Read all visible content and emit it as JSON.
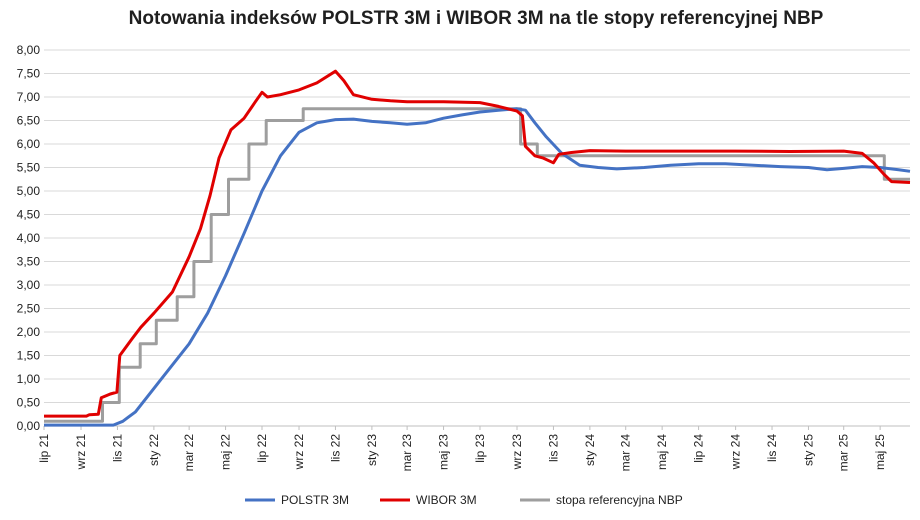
{
  "chart_data": {
    "type": "line",
    "title": "Notowania indeksów POLSTR 3M i WIBOR 3M na tle stopy referencyjnej NBP",
    "xlabel": "",
    "ylabel": "",
    "ylim": [
      0,
      8
    ],
    "y_ticks": [
      "0,00",
      "0,50",
      "1,00",
      "1,50",
      "2,00",
      "2,50",
      "3,00",
      "3,50",
      "4,00",
      "4,50",
      "5,00",
      "5,50",
      "6,00",
      "6,50",
      "7,00",
      "7,50",
      "8,00"
    ],
    "x_range": [
      "2021-07-01",
      "2025-06-20"
    ],
    "x_ticks": [
      {
        "label": "lip 21",
        "date": "2021-07-01"
      },
      {
        "label": "wrz 21",
        "date": "2021-09-01"
      },
      {
        "label": "lis 21",
        "date": "2021-11-01"
      },
      {
        "label": "sty 22",
        "date": "2022-01-01"
      },
      {
        "label": "mar 22",
        "date": "2022-03-01"
      },
      {
        "label": "maj 22",
        "date": "2022-05-01"
      },
      {
        "label": "lip 22",
        "date": "2022-07-01"
      },
      {
        "label": "wrz 22",
        "date": "2022-09-01"
      },
      {
        "label": "lis 22",
        "date": "2022-11-01"
      },
      {
        "label": "sty 23",
        "date": "2023-01-01"
      },
      {
        "label": "mar 23",
        "date": "2023-03-01"
      },
      {
        "label": "maj 23",
        "date": "2023-05-01"
      },
      {
        "label": "lip 23",
        "date": "2023-07-01"
      },
      {
        "label": "wrz 23",
        "date": "2023-09-01"
      },
      {
        "label": "lis 23",
        "date": "2023-11-01"
      },
      {
        "label": "sty 24",
        "date": "2024-01-01"
      },
      {
        "label": "mar 24",
        "date": "2024-03-01"
      },
      {
        "label": "maj 24",
        "date": "2024-05-01"
      },
      {
        "label": "lip 24",
        "date": "2024-07-01"
      },
      {
        "label": "wrz 24",
        "date": "2024-09-01"
      },
      {
        "label": "lis 24",
        "date": "2024-11-01"
      },
      {
        "label": "sty 25",
        "date": "2025-01-01"
      },
      {
        "label": "mar 25",
        "date": "2025-03-01"
      },
      {
        "label": "maj 25",
        "date": "2025-05-01"
      }
    ],
    "grid": true,
    "legend_placement": "bottom",
    "series": [
      {
        "name": "POLSTR 3M",
        "color": "#4472c4",
        "step": false,
        "points": [
          [
            "2021-07-01",
            0.02
          ],
          [
            "2021-10-25",
            0.02
          ],
          [
            "2021-11-10",
            0.1
          ],
          [
            "2021-12-01",
            0.3
          ],
          [
            "2022-01-01",
            0.8
          ],
          [
            "2022-02-01",
            1.3
          ],
          [
            "2022-03-01",
            1.75
          ],
          [
            "2022-04-01",
            2.4
          ],
          [
            "2022-05-01",
            3.2
          ],
          [
            "2022-06-01",
            4.1
          ],
          [
            "2022-07-01",
            5.0
          ],
          [
            "2022-08-01",
            5.75
          ],
          [
            "2022-09-01",
            6.25
          ],
          [
            "2022-10-01",
            6.45
          ],
          [
            "2022-11-01",
            6.52
          ],
          [
            "2022-12-01",
            6.53
          ],
          [
            "2023-01-01",
            6.48
          ],
          [
            "2023-02-01",
            6.45
          ],
          [
            "2023-03-01",
            6.42
          ],
          [
            "2023-04-01",
            6.45
          ],
          [
            "2023-05-01",
            6.55
          ],
          [
            "2023-06-01",
            6.62
          ],
          [
            "2023-07-01",
            6.68
          ],
          [
            "2023-08-01",
            6.72
          ],
          [
            "2023-09-01",
            6.75
          ],
          [
            "2023-09-15",
            6.72
          ],
          [
            "2023-10-01",
            6.45
          ],
          [
            "2023-10-20",
            6.15
          ],
          [
            "2023-11-15",
            5.8
          ],
          [
            "2023-12-15",
            5.55
          ],
          [
            "2024-01-15",
            5.5
          ],
          [
            "2024-02-15",
            5.47
          ],
          [
            "2024-04-01",
            5.5
          ],
          [
            "2024-05-15",
            5.55
          ],
          [
            "2024-07-01",
            5.58
          ],
          [
            "2024-08-15",
            5.58
          ],
          [
            "2024-10-01",
            5.55
          ],
          [
            "2024-11-15",
            5.52
          ],
          [
            "2025-01-01",
            5.5
          ],
          [
            "2025-02-01",
            5.45
          ],
          [
            "2025-03-01",
            5.48
          ],
          [
            "2025-04-01",
            5.52
          ],
          [
            "2025-05-01",
            5.5
          ],
          [
            "2025-06-01",
            5.45
          ],
          [
            "2025-06-20",
            5.42
          ]
        ]
      },
      {
        "name": "WIBOR 3M",
        "color": "#e00000",
        "step": false,
        "points": [
          [
            "2021-07-01",
            0.21
          ],
          [
            "2021-09-10",
            0.21
          ],
          [
            "2021-09-15",
            0.24
          ],
          [
            "2021-09-30",
            0.25
          ],
          [
            "2021-10-05",
            0.6
          ],
          [
            "2021-10-20",
            0.68
          ],
          [
            "2021-10-31",
            0.72
          ],
          [
            "2021-11-05",
            1.5
          ],
          [
            "2021-11-25",
            1.85
          ],
          [
            "2021-12-10",
            2.1
          ],
          [
            "2022-01-01",
            2.4
          ],
          [
            "2022-02-01",
            2.85
          ],
          [
            "2022-03-01",
            3.6
          ],
          [
            "2022-03-20",
            4.2
          ],
          [
            "2022-04-05",
            4.9
          ],
          [
            "2022-04-20",
            5.7
          ],
          [
            "2022-05-10",
            6.3
          ],
          [
            "2022-06-01",
            6.55
          ],
          [
            "2022-06-20",
            6.9
          ],
          [
            "2022-07-01",
            7.1
          ],
          [
            "2022-07-10",
            7.0
          ],
          [
            "2022-08-01",
            7.05
          ],
          [
            "2022-09-01",
            7.15
          ],
          [
            "2022-10-01",
            7.3
          ],
          [
            "2022-11-01",
            7.55
          ],
          [
            "2022-11-15",
            7.35
          ],
          [
            "2022-12-01",
            7.05
          ],
          [
            "2023-01-01",
            6.95
          ],
          [
            "2023-02-01",
            6.92
          ],
          [
            "2023-03-01",
            6.9
          ],
          [
            "2023-05-01",
            6.9
          ],
          [
            "2023-07-01",
            6.88
          ],
          [
            "2023-08-01",
            6.8
          ],
          [
            "2023-09-01",
            6.7
          ],
          [
            "2023-09-10",
            6.6
          ],
          [
            "2023-09-15",
            5.95
          ],
          [
            "2023-10-01",
            5.75
          ],
          [
            "2023-10-15",
            5.7
          ],
          [
            "2023-11-01",
            5.6
          ],
          [
            "2023-11-10",
            5.78
          ],
          [
            "2023-12-01",
            5.82
          ],
          [
            "2024-01-01",
            5.86
          ],
          [
            "2024-03-01",
            5.85
          ],
          [
            "2024-06-01",
            5.85
          ],
          [
            "2024-09-01",
            5.85
          ],
          [
            "2024-12-01",
            5.84
          ],
          [
            "2025-03-01",
            5.85
          ],
          [
            "2025-04-01",
            5.8
          ],
          [
            "2025-04-20",
            5.6
          ],
          [
            "2025-05-08",
            5.35
          ],
          [
            "2025-05-20",
            5.2
          ],
          [
            "2025-06-20",
            5.18
          ]
        ]
      },
      {
        "name": "stopa referencyjna NBP",
        "color": "#9e9e9e",
        "step": true,
        "points": [
          [
            "2021-07-01",
            0.1
          ],
          [
            "2021-10-07",
            0.5
          ],
          [
            "2021-11-04",
            1.25
          ],
          [
            "2021-12-09",
            1.75
          ],
          [
            "2022-01-05",
            2.25
          ],
          [
            "2022-02-09",
            2.75
          ],
          [
            "2022-03-09",
            3.5
          ],
          [
            "2022-04-07",
            4.5
          ],
          [
            "2022-05-06",
            5.25
          ],
          [
            "2022-06-09",
            6.0
          ],
          [
            "2022-07-08",
            6.5
          ],
          [
            "2022-09-08",
            6.75
          ],
          [
            "2023-09-07",
            6.0
          ],
          [
            "2023-10-05",
            5.75
          ],
          [
            "2025-05-08",
            5.25
          ],
          [
            "2025-06-20",
            5.25
          ]
        ]
      }
    ]
  }
}
